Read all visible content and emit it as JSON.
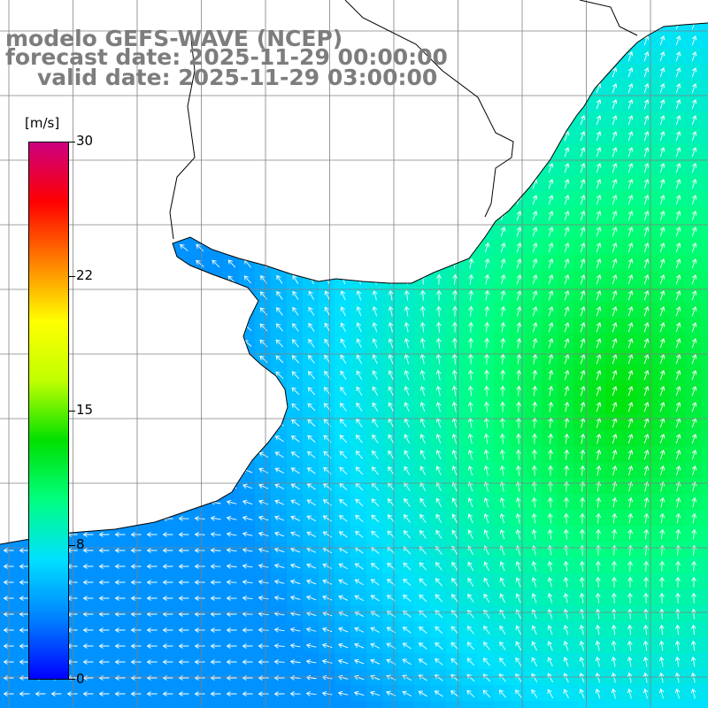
{
  "titles": {
    "model": "modelo GEFS-WAVE (NCEP)",
    "forecast": "forecast date: 2025-11-29 00:00:00",
    "valid": "valid date: 2025-11-29 03:00:00"
  },
  "colorbar": {
    "unit": "[m/s]",
    "min": 0,
    "max": 30,
    "ticks": [
      "30",
      "22",
      "15",
      "8",
      "0"
    ],
    "tick_values": [
      30,
      22,
      15,
      8,
      0
    ],
    "colors": [
      "#0000ff",
      "#0080ff",
      "#00e0ff",
      "#00ff80",
      "#00e000",
      "#c0ff00",
      "#ffff00",
      "#ff8000",
      "#ff0000",
      "#cc0080"
    ]
  },
  "map": {
    "field": "wind speed with direction arrows",
    "land_color": "#ffffff",
    "grid_color": "#808080",
    "coast_color": "#000000"
  }
}
